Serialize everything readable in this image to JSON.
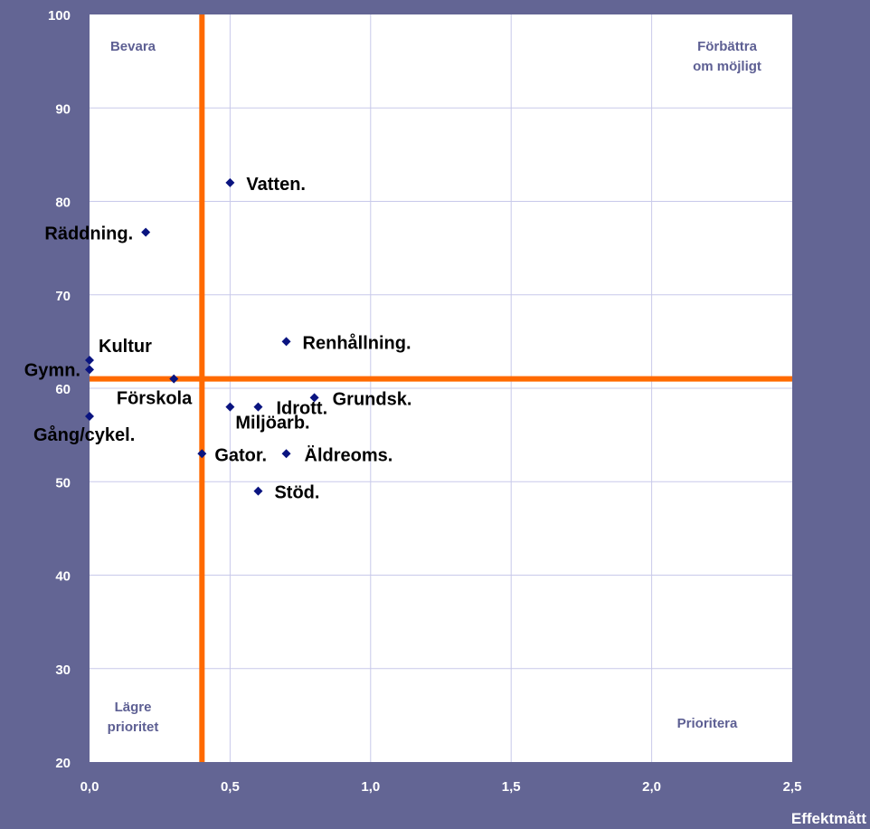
{
  "chart_data": {
    "type": "scatter",
    "xlabel": "Effektmått",
    "xlim": [
      0,
      2.5
    ],
    "ylim": [
      20,
      100
    ],
    "x_ticks": [
      "0,0",
      "0,5",
      "1,0",
      "1,5",
      "2,0",
      "2,5"
    ],
    "y_ticks": [
      "20",
      "30",
      "40",
      "50",
      "60",
      "70",
      "80",
      "90",
      "100"
    ],
    "grid": true,
    "reference_lines": {
      "x": 0.4,
      "y": 61,
      "color": "#ff6a00"
    },
    "quadrant_labels": {
      "top_left": [
        "Bevara"
      ],
      "top_right": [
        "Förbättra",
        "om möjligt"
      ],
      "bottom_left": [
        "Lägre",
        "prioritet"
      ],
      "bottom_right": [
        "Prioritera"
      ]
    },
    "marker_color": "#0a1480",
    "points": [
      {
        "label": "Vatten.",
        "x": 0.5,
        "y": 82
      },
      {
        "label": "Räddning.",
        "x": 0.2,
        "y": 76.7
      },
      {
        "label": "Renhållning.",
        "x": 0.7,
        "y": 65
      },
      {
        "label": "Kultur",
        "x": 0.0,
        "y": 63
      },
      {
        "label": "Gymn.",
        "x": 0.0,
        "y": 62
      },
      {
        "label": "Förskola",
        "x": 0.3,
        "y": 61
      },
      {
        "label": "Grundsk.",
        "x": 0.8,
        "y": 59
      },
      {
        "label": "Idrott.",
        "x": 0.6,
        "y": 58
      },
      {
        "label": "Miljöarb.",
        "x": 0.5,
        "y": 58
      },
      {
        "label": "Gång/cykel.",
        "x": 0.0,
        "y": 57
      },
      {
        "label": "Gator.",
        "x": 0.4,
        "y": 53
      },
      {
        "label": "Äldreoms.",
        "x": 0.7,
        "y": 53
      },
      {
        "label": "Stöd.",
        "x": 0.6,
        "y": 49
      }
    ]
  }
}
